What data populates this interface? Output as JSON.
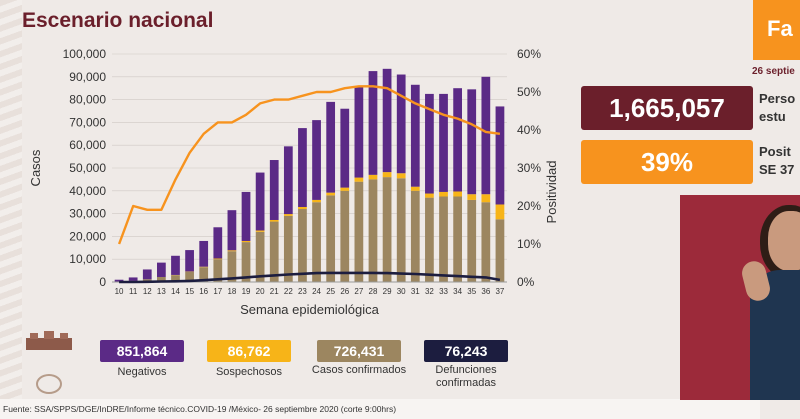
{
  "title": "Escenario nacional",
  "chart_data": {
    "type": "bar",
    "stacked": true,
    "xlabel": "Semana epidemiológica",
    "ylabel": "Casos",
    "y2label": "Positividad",
    "ylim": [
      0,
      100000
    ],
    "y2lim": [
      0,
      60
    ],
    "yticks": [
      "0",
      "10,000",
      "20,000",
      "30,000",
      "40,000",
      "50,000",
      "60,000",
      "70,000",
      "80,000",
      "90,000",
      "100,000"
    ],
    "y2ticks": [
      "0%",
      "10%",
      "20%",
      "30%",
      "40%",
      "50%",
      "60%"
    ],
    "categories": [
      "10",
      "11",
      "12",
      "13",
      "14",
      "15",
      "16",
      "17",
      "18",
      "19",
      "20",
      "21",
      "22",
      "23",
      "24",
      "25",
      "26",
      "27",
      "28",
      "29",
      "30",
      "31",
      "32",
      "33",
      "34",
      "35",
      "36",
      "37"
    ],
    "series": [
      {
        "name": "Casos confirmados",
        "kind": "bar",
        "color": "#9c8660",
        "values": [
          100,
          500,
          1200,
          2200,
          3000,
          4500,
          6500,
          10000,
          13500,
          17500,
          22000,
          26500,
          29000,
          32000,
          35000,
          38000,
          40000,
          44000,
          45000,
          46000,
          45500,
          40000,
          37000,
          37500,
          37500,
          36000,
          35000,
          27500
        ]
      },
      {
        "name": "Sospechosos",
        "kind": "bar",
        "color": "#f7b418",
        "values": [
          0,
          0,
          0,
          0,
          100,
          100,
          200,
          300,
          400,
          500,
          600,
          700,
          800,
          900,
          1000,
          1200,
          1400,
          1800,
          2000,
          2200,
          2200,
          1800,
          1800,
          2000,
          2200,
          2500,
          3500,
          6500
        ]
      },
      {
        "name": "Negativos",
        "kind": "bar",
        "color": "#5b2a86",
        "values": [
          900,
          1500,
          4300,
          6300,
          8400,
          9400,
          11300,
          13700,
          17600,
          21500,
          25400,
          26300,
          29700,
          34600,
          35000,
          39800,
          34600,
          39700,
          45500,
          45300,
          43300,
          44700,
          43700,
          43000,
          45300,
          46000,
          51500,
          43000
        ]
      },
      {
        "name": "Defunciones confirmadas",
        "kind": "line",
        "color": "#1c1d3f",
        "values": [
          0,
          0,
          100,
          200,
          300,
          500,
          800,
          1200,
          1600,
          2000,
          2500,
          2900,
          3300,
          3600,
          3900,
          4000,
          4000,
          4000,
          4000,
          3900,
          3700,
          3500,
          3200,
          2900,
          2600,
          2300,
          2000,
          900
        ]
      },
      {
        "name": "Positividad",
        "kind": "line",
        "axis": "y2",
        "color": "#f7931e",
        "values": [
          10,
          20,
          19,
          19,
          27,
          34,
          39,
          42,
          42,
          44,
          47,
          48,
          48,
          49,
          50,
          50,
          51,
          51.5,
          51.5,
          51,
          49,
          47,
          45.5,
          44,
          43,
          41.5,
          39.5,
          39
        ]
      }
    ]
  },
  "legend": [
    {
      "value": "851,864",
      "label": "Negativos",
      "color": "#5b2a86"
    },
    {
      "value": "86,762",
      "label": "Sospechosos",
      "color": "#f7b418"
    },
    {
      "value": "726,431",
      "label": "Casos confirmados",
      "color": "#9c8660"
    },
    {
      "value": "76,243",
      "label": "Defunciones confirmadas",
      "color": "#1c1d3f"
    }
  ],
  "side": {
    "header": "Fa",
    "date": "26 septie",
    "studied_value": "1,665,057",
    "studied_text_1": "Perso",
    "studied_text_2": "estu",
    "positivity_value": "39%",
    "positivity_text_1": "Posit",
    "positivity_text_2": "SE 37"
  },
  "footer": "Fuente: SSA/SPPS/DGE/InDRE/Informe técnico.COVID-19 /México- 26 septiembre 2020 (corte 9:00hrs)"
}
